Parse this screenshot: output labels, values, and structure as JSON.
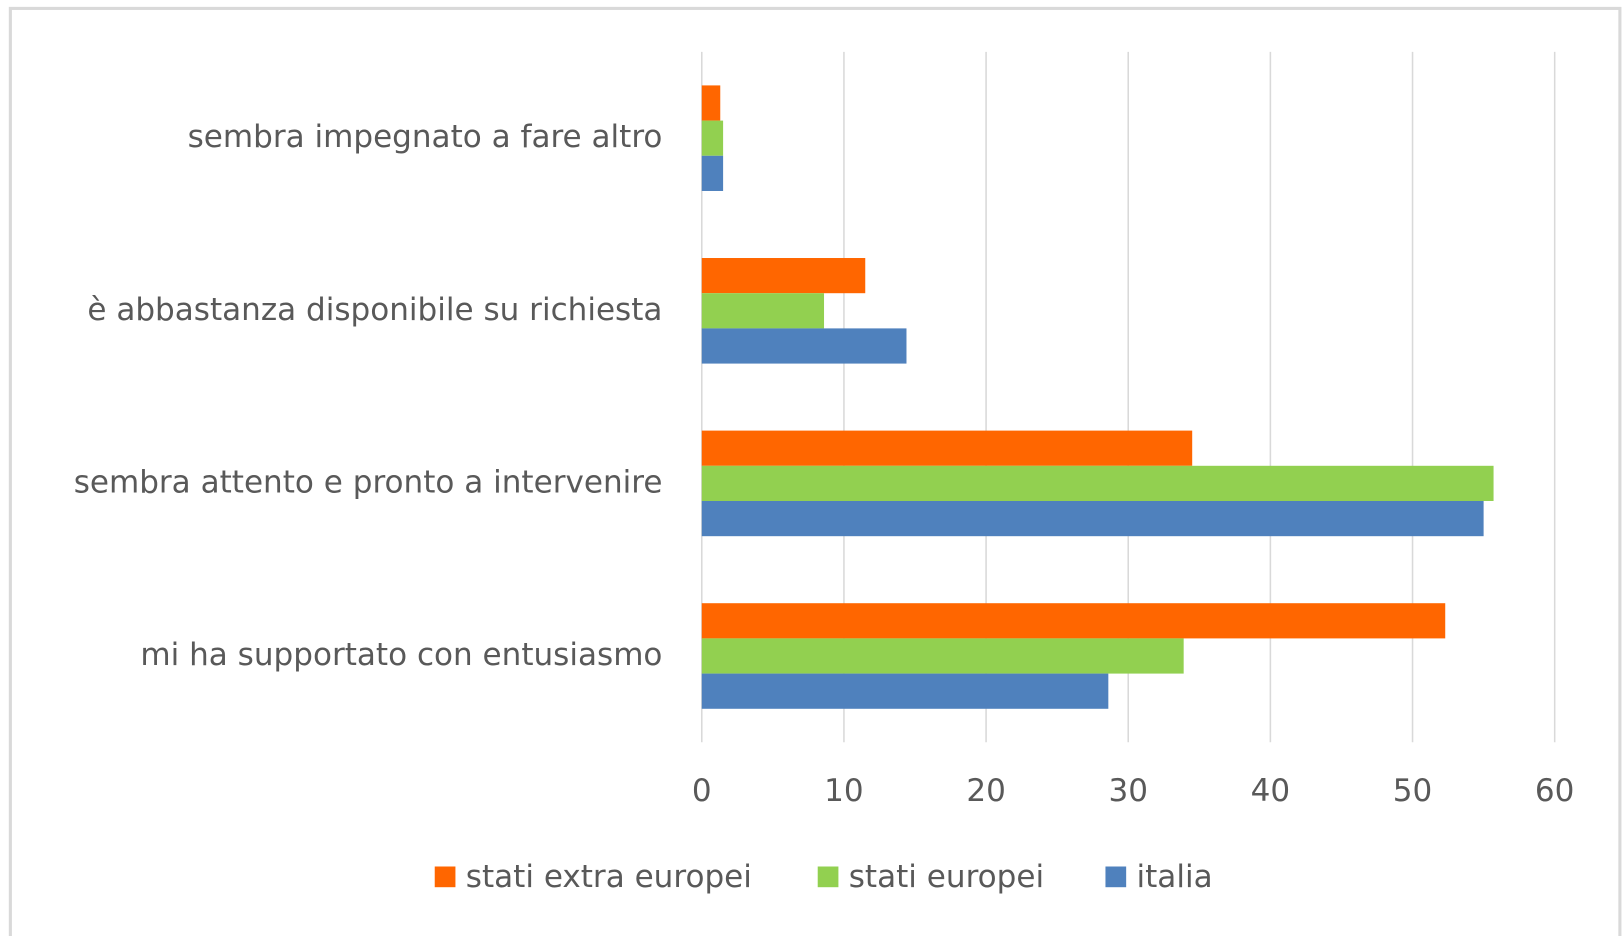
{
  "chart_data": {
    "type": "bar",
    "orientation": "horizontal",
    "categories": [
      "mi ha supportato con entusiasmo",
      "sembra attento e pronto a intervenire",
      "è abbastanza disponibile su richiesta",
      "sembra impegnato a fare altro"
    ],
    "series": [
      {
        "name": "stati extra europei",
        "color": "#ff6600",
        "values": [
          52.3,
          34.5,
          11.5,
          1.3
        ]
      },
      {
        "name": "stati europei",
        "color": "#92d050",
        "values": [
          33.9,
          55.7,
          8.6,
          1.5
        ]
      },
      {
        "name": "italia",
        "color": "#4f81bd",
        "values": [
          28.6,
          55.0,
          14.4,
          1.5
        ]
      }
    ],
    "xlim": [
      0,
      60
    ],
    "xticks": [
      0,
      10,
      20,
      30,
      40,
      50,
      60
    ],
    "grid": true,
    "legend": "bottom"
  }
}
